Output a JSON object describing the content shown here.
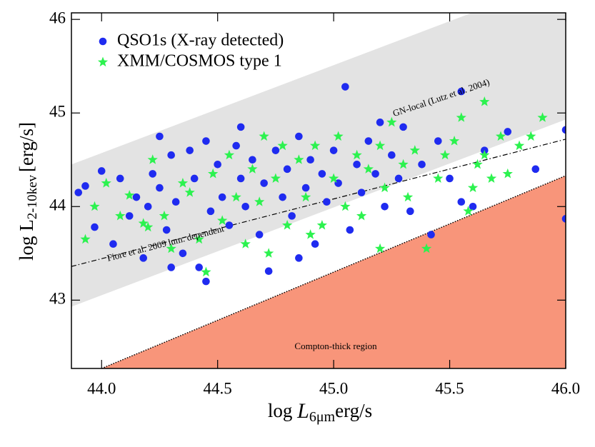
{
  "chart_data": {
    "type": "scatter",
    "x_label": "log",
    "x_label_var": "L",
    "x_label_sub": "6μm",
    "x_label_unit": "erg/s",
    "y_label": "log L",
    "y_label_sub": "2-10kev",
    "y_label_unit": "[erg/s]",
    "xlim": [
      43.87,
      46.0
    ],
    "ylim": [
      42.27,
      46.07
    ],
    "xticks": [
      {
        "value": 44,
        "label": "44.0"
      },
      44.5,
      {
        "value": 45,
        "label": "45.0"
      },
      45.5,
      {
        "value": 46,
        "label": "46.0"
      }
    ],
    "yticks": [
      43,
      44,
      45,
      46
    ],
    "band": {
      "color": "#e3e3e3",
      "x": [
        43.87,
        46.0
      ],
      "y_lower": [
        42.93,
        44.93
      ],
      "y_upper": [
        44.45,
        46.45
      ]
    },
    "line": {
      "x": [
        43.87,
        46.0
      ],
      "y": [
        43.36,
        44.72
      ]
    },
    "compton_region": {
      "color": "#f8957a",
      "label": "Compton-thick region",
      "x": [
        44.0,
        46.0
      ],
      "y": [
        42.27,
        44.33
      ]
    },
    "annotations": [
      "GN-local (Lutz et al. 2004)",
      "Fiore et al. 2009 lum. dependent"
    ],
    "series": [
      {
        "name": "QSO1s (X-ray detected)",
        "color": "#1f2bf0",
        "marker": "circle",
        "x": [
          43.9,
          43.93,
          43.97,
          44.0,
          44.05,
          44.08,
          44.12,
          44.15,
          44.18,
          44.2,
          44.22,
          44.25,
          44.28,
          44.3,
          44.32,
          44.35,
          44.38,
          44.4,
          44.42,
          44.45,
          44.47,
          44.5,
          44.52,
          44.55,
          44.58,
          44.6,
          44.62,
          44.65,
          44.68,
          44.7,
          44.72,
          44.75,
          44.78,
          44.8,
          44.82,
          44.85,
          44.88,
          44.9,
          44.92,
          44.95,
          44.97,
          45.0,
          45.02,
          45.05,
          45.07,
          45.1,
          45.12,
          45.15,
          45.18,
          45.2,
          45.22,
          45.25,
          45.28,
          45.3,
          45.33,
          45.38,
          45.42,
          45.45,
          45.5,
          45.55,
          45.55,
          45.6,
          45.65,
          45.75,
          45.87,
          46.0,
          46.0,
          44.45,
          44.25,
          44.6,
          44.85,
          44.3
        ],
        "values": [
          44.15,
          44.22,
          43.78,
          44.38,
          43.6,
          44.3,
          43.9,
          44.1,
          43.45,
          44.0,
          44.35,
          44.2,
          43.75,
          44.55,
          44.05,
          43.5,
          44.6,
          44.3,
          43.35,
          44.7,
          43.95,
          44.45,
          44.1,
          43.8,
          44.65,
          44.3,
          44.0,
          44.5,
          43.7,
          44.25,
          43.31,
          44.6,
          44.1,
          44.4,
          43.9,
          44.75,
          44.2,
          44.5,
          43.6,
          44.35,
          44.05,
          44.6,
          44.25,
          45.28,
          43.75,
          44.45,
          44.15,
          44.7,
          44.35,
          44.9,
          44.0,
          44.55,
          44.3,
          44.85,
          43.95,
          44.45,
          43.7,
          44.7,
          44.3,
          45.23,
          44.05,
          44.0,
          44.6,
          44.8,
          44.4,
          44.82,
          43.87,
          43.2,
          44.75,
          44.85,
          43.45,
          43.35
        ]
      },
      {
        "name": "XMM/COSMOS type 1",
        "color": "#2cf24f",
        "marker": "star",
        "x": [
          43.93,
          43.97,
          44.02,
          44.08,
          44.12,
          44.18,
          44.2,
          44.22,
          44.27,
          44.3,
          44.35,
          44.38,
          44.42,
          44.45,
          44.48,
          44.52,
          44.55,
          44.58,
          44.62,
          44.65,
          44.68,
          44.7,
          44.72,
          44.75,
          44.78,
          44.8,
          44.85,
          44.88,
          44.92,
          44.95,
          45.0,
          45.02,
          45.05,
          45.1,
          45.12,
          45.15,
          45.2,
          45.22,
          45.25,
          45.3,
          45.32,
          45.35,
          45.4,
          45.45,
          45.48,
          45.52,
          45.55,
          45.6,
          45.62,
          45.65,
          45.65,
          45.68,
          45.72,
          45.75,
          45.8,
          45.85,
          45.9,
          45.58,
          45.2,
          44.9
        ],
        "values": [
          43.65,
          44.0,
          44.25,
          43.9,
          44.12,
          43.82,
          43.78,
          44.5,
          43.9,
          43.55,
          44.25,
          44.15,
          43.65,
          43.3,
          44.35,
          43.85,
          44.55,
          44.1,
          43.6,
          44.4,
          44.05,
          44.75,
          43.5,
          44.3,
          44.65,
          43.8,
          44.5,
          44.1,
          44.65,
          43.8,
          44.3,
          44.75,
          44.0,
          44.55,
          43.9,
          44.4,
          44.65,
          44.2,
          44.9,
          44.45,
          44.1,
          44.6,
          43.55,
          44.3,
          44.55,
          44.7,
          44.95,
          44.2,
          44.45,
          45.12,
          44.55,
          44.3,
          44.75,
          44.35,
          44.65,
          44.75,
          44.95,
          43.95,
          43.55,
          43.7
        ]
      }
    ]
  }
}
